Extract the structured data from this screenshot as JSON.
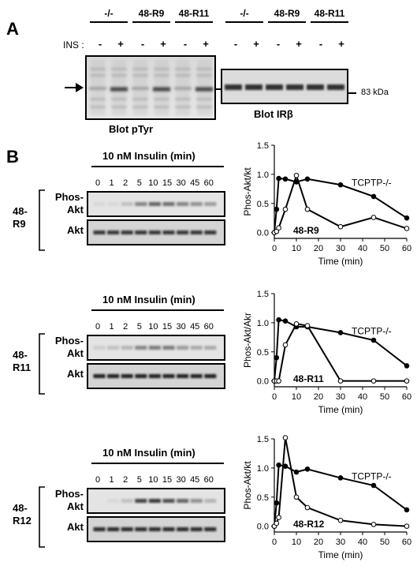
{
  "panelA": {
    "letter": "A",
    "ins_label": "INS :",
    "groups": [
      "-/-",
      "48-R9",
      "48-R11",
      "-/-",
      "48-R9",
      "48-R11"
    ],
    "treatment_marks": [
      "-",
      "+",
      "-",
      "+",
      "-",
      "+",
      "-",
      "+",
      "-",
      "+",
      "-",
      "+"
    ],
    "blot_left_caption": "Blot pTyr",
    "blot_right_caption": "Blot IRβ",
    "size_marker": "83 kDa"
  },
  "panelB": {
    "letter": "B",
    "rows": [
      {
        "header": "10 nM Insulin (min)",
        "times": [
          "0",
          "1",
          "2",
          "5",
          "10",
          "15",
          "30",
          "45",
          "60"
        ],
        "cell_line_top": "48-",
        "cell_line_bottom": "R9",
        "blot_label_phos_1": "Phos-",
        "blot_label_phos_2": "Akt",
        "blot_label_akt": "Akt",
        "phos_intensity": [
          0.05,
          0.05,
          0.15,
          0.45,
          0.6,
          0.55,
          0.45,
          0.4,
          0.3
        ],
        "akt_intensity": [
          0.8,
          0.8,
          0.8,
          0.8,
          0.8,
          0.8,
          0.8,
          0.8,
          0.8
        ]
      },
      {
        "header": "10 nM Insulin (min)",
        "times": [
          "0",
          "1",
          "2",
          "5",
          "10",
          "15",
          "30",
          "45",
          "60"
        ],
        "cell_line_top": "48-",
        "cell_line_bottom": "R11",
        "blot_label_phos_1": "Phos-",
        "blot_label_phos_2": "Akt",
        "blot_label_akt": "Akt",
        "phos_intensity": [
          0.1,
          0.15,
          0.2,
          0.45,
          0.5,
          0.5,
          0.35,
          0.25,
          0.25
        ],
        "akt_intensity": [
          0.9,
          0.9,
          0.9,
          0.9,
          0.9,
          0.9,
          0.9,
          0.9,
          0.9
        ]
      },
      {
        "header": "10 nM Insulin (min)",
        "times": [
          "0",
          "1",
          "2",
          "5",
          "10",
          "15",
          "30",
          "45",
          "60"
        ],
        "cell_line_top": "48-",
        "cell_line_bottom": "R12",
        "blot_label_phos_1": "Phos-",
        "blot_label_phos_2": "Akt",
        "blot_label_akt": "Akt",
        "phos_intensity": [
          0.0,
          0.05,
          0.15,
          0.75,
          0.8,
          0.7,
          0.6,
          0.4,
          0.2
        ],
        "akt_intensity": [
          0.85,
          0.85,
          0.85,
          0.85,
          0.85,
          0.85,
          0.85,
          0.85,
          0.85
        ]
      }
    ]
  },
  "chart_data": [
    {
      "type": "line",
      "title": "",
      "xlabel": "Time (min)",
      "ylabel": "Phos-Akt/kt",
      "xlim": [
        0,
        60
      ],
      "ylim": [
        -0.1,
        1.5
      ],
      "xticks": [
        0,
        10,
        20,
        30,
        40,
        50,
        60
      ],
      "yticks": [
        0.0,
        0.5,
        1.0,
        1.5
      ],
      "ytick_labels": [
        "0.0",
        "0.5",
        "1.0",
        "1.5"
      ],
      "series": [
        {
          "name": "TCPTP-/-",
          "style": "filled",
          "x": [
            0,
            1,
            2,
            5,
            10,
            15,
            30,
            45,
            60
          ],
          "y": [
            0.0,
            0.4,
            0.93,
            0.92,
            0.87,
            0.92,
            0.82,
            0.62,
            0.25
          ]
        },
        {
          "name": "48-R9",
          "style": "open",
          "x": [
            0,
            1,
            2,
            5,
            10,
            15,
            30,
            45,
            60
          ],
          "y": [
            0.0,
            0.02,
            0.08,
            0.4,
            0.98,
            0.4,
            0.1,
            0.26,
            0.07
          ]
        }
      ]
    },
    {
      "type": "line",
      "title": "",
      "xlabel": "Time (min)",
      "ylabel": "Phos-Akt/Akr",
      "xlim": [
        0,
        60
      ],
      "ylim": [
        -0.1,
        1.5
      ],
      "xticks": [
        0,
        10,
        20,
        30,
        40,
        50,
        60
      ],
      "yticks": [
        0.0,
        0.5,
        1.0,
        1.5
      ],
      "ytick_labels": [
        "0.0",
        "0.5",
        "1.0",
        "1.5"
      ],
      "series": [
        {
          "name": "TCPTP-/-",
          "style": "filled",
          "x": [
            0,
            1,
            2,
            5,
            10,
            15,
            30,
            45,
            60
          ],
          "y": [
            0.0,
            0.4,
            1.05,
            1.03,
            0.93,
            0.93,
            0.83,
            0.7,
            0.26
          ]
        },
        {
          "name": "48-R11",
          "style": "open",
          "x": [
            0,
            1,
            2,
            5,
            10,
            15,
            30,
            45,
            60
          ],
          "y": [
            0.0,
            0.0,
            0.0,
            0.62,
            0.98,
            0.95,
            0.0,
            0.0,
            0.0
          ]
        }
      ]
    },
    {
      "type": "line",
      "title": "",
      "xlabel": "Time (min)",
      "ylabel": "Phos-Akt/kt",
      "xlim": [
        0,
        60
      ],
      "ylim": [
        -0.1,
        1.5
      ],
      "xticks": [
        0,
        10,
        20,
        30,
        40,
        50,
        60
      ],
      "yticks": [
        0.0,
        0.5,
        1.0,
        1.5
      ],
      "ytick_labels": [
        "0.0",
        "0.5",
        "1.0",
        "1.5"
      ],
      "series": [
        {
          "name": "TCPTP-/-",
          "style": "filled",
          "x": [
            0,
            1,
            2,
            5,
            10,
            15,
            30,
            45,
            60
          ],
          "y": [
            0.0,
            0.4,
            1.05,
            1.03,
            0.93,
            0.98,
            0.83,
            0.7,
            0.28
          ]
        },
        {
          "name": "48-R12",
          "style": "open",
          "x": [
            0,
            1,
            2,
            5,
            10,
            15,
            30,
            45,
            60
          ],
          "y": [
            0.0,
            0.05,
            0.15,
            1.52,
            0.5,
            0.32,
            0.1,
            0.03,
            0.0
          ]
        }
      ]
    }
  ]
}
